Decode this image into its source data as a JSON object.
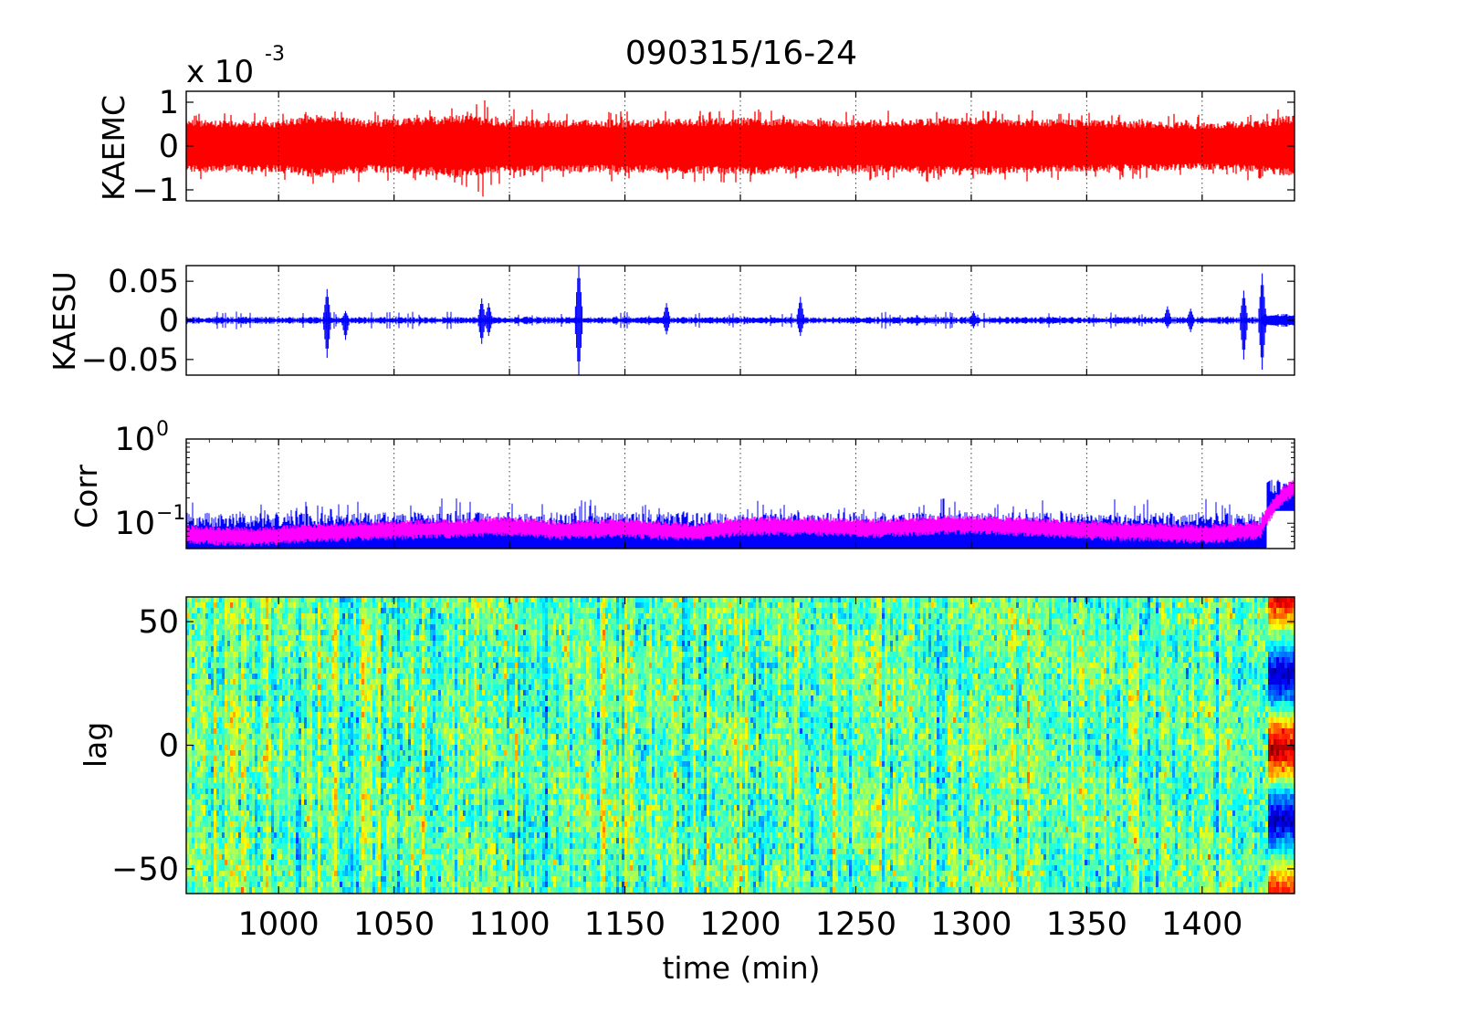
{
  "figure": {
    "title": "090315/16-24",
    "xlabel": "time (min)",
    "x_ticks": [
      "1000",
      "1050",
      "1100",
      "1150",
      "1200",
      "1250",
      "1300",
      "1350",
      "1400"
    ]
  },
  "chart_data": [
    {
      "type": "line",
      "name": "panel-kaemc",
      "ylabel": "KAEMC",
      "exponent_base": "x 10",
      "exponent_power": "-3",
      "xlim": [
        960,
        1440
      ],
      "ylim": [
        -1.25,
        1.25
      ],
      "y_scale_factor": 0.001,
      "y_ticks": [
        -1,
        0,
        1
      ],
      "y_tick_labels": [
        "−1",
        "0",
        "1"
      ],
      "x_ticks": [
        1000,
        1050,
        1100,
        1150,
        1200,
        1250,
        1300,
        1350,
        1400
      ],
      "grid": "x-dotted",
      "series": [
        {
          "color": "#ff0000",
          "envelope": {
            "x": [
              960,
              1000,
              1015,
              1040,
              1060,
              1080,
              1090,
              1100,
              1150,
              1200,
              1250,
              1300,
              1350,
              1400,
              1425,
              1440
            ],
            "typical_amplitude": [
              0.5,
              0.5,
              0.6,
              0.5,
              0.55,
              0.6,
              0.55,
              0.5,
              0.5,
              0.55,
              0.5,
              0.55,
              0.5,
              0.45,
              0.5,
              0.6
            ],
            "peak_amplitude": [
              0.75,
              0.8,
              0.9,
              0.8,
              0.8,
              0.9,
              1.2,
              0.85,
              0.8,
              0.85,
              0.8,
              0.85,
              0.8,
              0.75,
              0.8,
              0.9
            ]
          }
        }
      ]
    },
    {
      "type": "line",
      "name": "panel-kaesu",
      "ylabel": "KAESU",
      "xlim": [
        960,
        1440
      ],
      "ylim": [
        -0.07,
        0.07
      ],
      "y_ticks": [
        -0.05,
        0,
        0.05
      ],
      "y_tick_labels": [
        "−0.05",
        "0",
        "0.05"
      ],
      "x_ticks": [
        1000,
        1050,
        1100,
        1150,
        1200,
        1250,
        1300,
        1350,
        1400
      ],
      "grid": "x-dotted",
      "series": [
        {
          "color": "#0000ff",
          "baseline_amplitude": 0.003,
          "bursts": [
            {
              "x": 1021,
              "max": 0.04,
              "min": -0.048
            },
            {
              "x": 1029,
              "max": 0.012,
              "min": -0.025
            },
            {
              "x": 1088,
              "max": 0.028,
              "min": -0.03
            },
            {
              "x": 1091,
              "max": 0.022,
              "min": -0.02
            },
            {
              "x": 1130,
              "max": 0.072,
              "min": -0.07
            },
            {
              "x": 1168,
              "max": 0.022,
              "min": -0.018
            },
            {
              "x": 1226,
              "max": 0.03,
              "min": -0.02
            },
            {
              "x": 1301,
              "max": 0.012,
              "min": -0.01
            },
            {
              "x": 1385,
              "max": 0.018,
              "min": -0.01
            },
            {
              "x": 1395,
              "max": 0.015,
              "min": -0.015
            },
            {
              "x": 1418,
              "max": 0.038,
              "min": -0.05
            },
            {
              "x": 1426,
              "max": 0.06,
              "min": -0.063
            }
          ],
          "post_event": {
            "x_start": 1426,
            "x_end": 1440,
            "amplitude": 0.007
          }
        }
      ]
    },
    {
      "type": "line",
      "name": "panel-corr",
      "ylabel": "Corr",
      "y_scale": "log",
      "xlim": [
        960,
        1440
      ],
      "ylim": [
        0.05,
        1
      ],
      "y_tick_labels": [
        {
          "value": 1,
          "base": "10",
          "power": "0"
        },
        {
          "value": 0.1,
          "base": "10",
          "power": "−1"
        }
      ],
      "x_ticks": [
        1000,
        1050,
        1100,
        1150,
        1200,
        1250,
        1300,
        1350,
        1400
      ],
      "grid": "x-dotted",
      "series": [
        {
          "color": "#0000ff",
          "typical": 0.09,
          "spike_max": 0.22,
          "end_rise": {
            "x_start": 1428,
            "x_end": 1440,
            "value": 0.28
          }
        },
        {
          "color": "#ff00ff",
          "smooth_x": [
            960,
            990,
            1020,
            1050,
            1080,
            1100,
            1120,
            1150,
            1180,
            1200,
            1230,
            1260,
            1290,
            1320,
            1350,
            1380,
            1400,
            1425,
            1440
          ],
          "smooth_y": [
            0.08,
            0.075,
            0.085,
            0.09,
            0.095,
            0.1,
            0.09,
            0.095,
            0.085,
            0.1,
            0.1,
            0.095,
            0.105,
            0.1,
            0.09,
            0.085,
            0.08,
            0.09,
            0.3
          ]
        }
      ]
    },
    {
      "type": "heatmap",
      "name": "panel-lag",
      "ylabel": "lag",
      "xlim": [
        960,
        1440
      ],
      "ylim": [
        -60,
        60
      ],
      "y_ticks": [
        -50,
        0,
        50
      ],
      "y_tick_labels": [
        "−50",
        "0",
        "50"
      ],
      "colormap": "jet",
      "colormap_colors": [
        "#00008f",
        "#0000ff",
        "#0080ff",
        "#00ffff",
        "#80ff80",
        "#ffff00",
        "#ff8000",
        "#ff0000",
        "#800000"
      ],
      "background_value": 0.47,
      "event": {
        "x_start": 1428,
        "x_end": 1440,
        "lag_values": [
          {
            "lag": -60,
            "v": 0.9
          },
          {
            "lag": -50,
            "v": 0.65
          },
          {
            "lag": -40,
            "v": 0.3
          },
          {
            "lag": -30,
            "v": 0.05
          },
          {
            "lag": -20,
            "v": 0.25
          },
          {
            "lag": -10,
            "v": 0.7
          },
          {
            "lag": 0,
            "v": 0.97
          },
          {
            "lag": 10,
            "v": 0.7
          },
          {
            "lag": 20,
            "v": 0.25
          },
          {
            "lag": 30,
            "v": 0.05
          },
          {
            "lag": 40,
            "v": 0.3
          },
          {
            "lag": 50,
            "v": 0.65
          },
          {
            "lag": 60,
            "v": 0.9
          }
        ]
      }
    }
  ]
}
